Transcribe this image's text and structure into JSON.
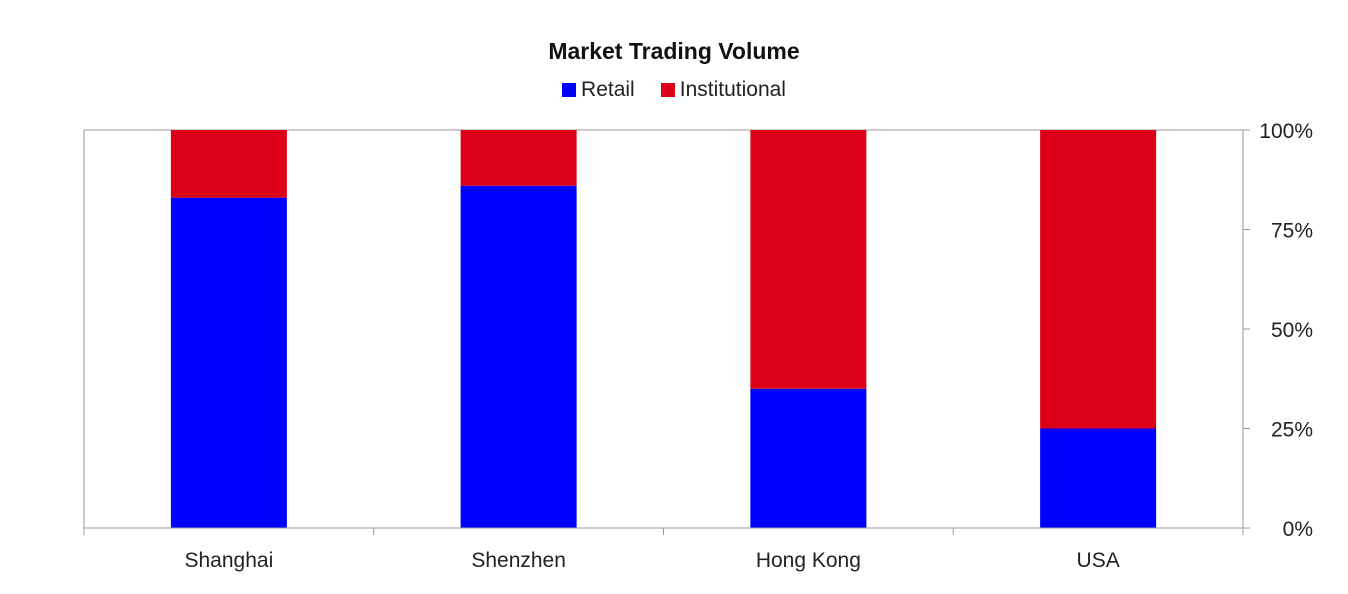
{
  "chart_data": {
    "type": "bar",
    "stacked": true,
    "title": "Market Trading Volume",
    "categories": [
      "Shanghai",
      "Shenzhen",
      "Hong Kong",
      "USA"
    ],
    "series": [
      {
        "name": "Retail",
        "color": "#0000ff",
        "values": [
          83,
          86,
          35,
          25
        ]
      },
      {
        "name": "Institutional",
        "color": "#dc0018",
        "values": [
          17,
          14,
          65,
          75
        ]
      }
    ],
    "ylim": [
      0,
      100
    ],
    "yticks": [
      "0%",
      "25%",
      "50%",
      "75%",
      "100%"
    ],
    "ytick_values": [
      0,
      25,
      50,
      75,
      100
    ],
    "yaxis_position": "right",
    "legend_position": "top-center",
    "grid": false
  }
}
